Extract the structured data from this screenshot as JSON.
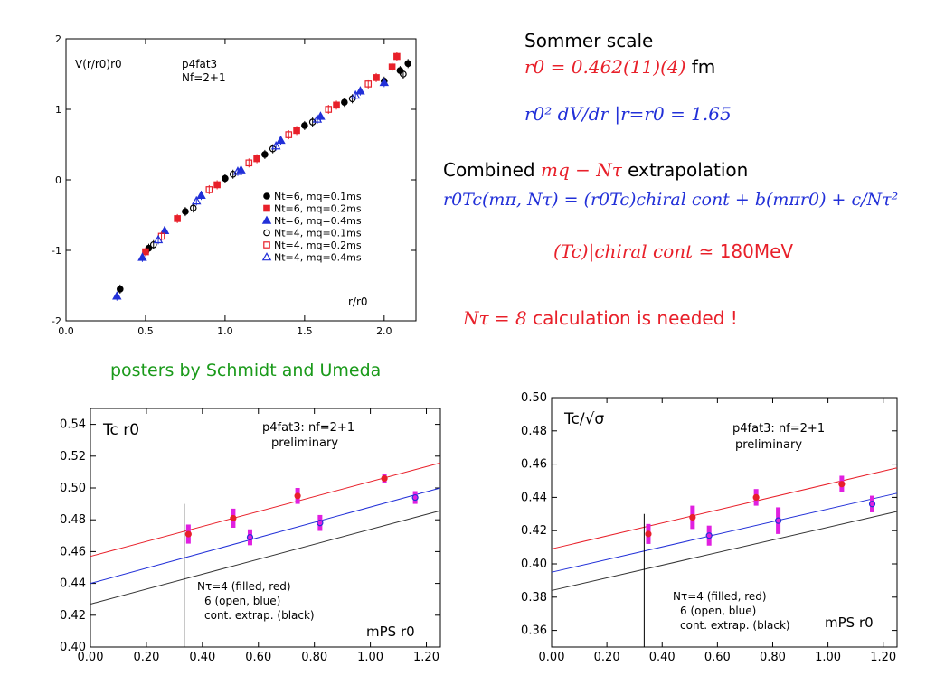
{
  "colors": {
    "red": "#e8202a",
    "blue": "#2230d8",
    "green": "#1a9a1a",
    "magenta": "#e020e0",
    "black": "#000000"
  },
  "text": {
    "sommer_title": "Sommer scale",
    "r0_value": "r0 = 0.462(11)(4)",
    "r0_unit": "fm",
    "slope": "r0² dV/dr |r=r0 = 1.65",
    "extrap_title_pre": "Combined",
    "extrap_title_math": "mq − Nτ",
    "extrap_title_post": "extrapolation",
    "extrap_formula": "r0Tc(mπ, Nτ) = (r0Tc)chiral cont + b(mπr0) + c/Nτ²",
    "tc_result_math": "(Tc)|chiral cont ≃",
    "tc_result_val": "180MeV",
    "nt8_math": "Nτ = 8",
    "nt8_text": "calculation is needed !",
    "posters": "posters by Schmidt and Umeda"
  },
  "chart_data": [
    {
      "type": "scatter",
      "title": "p4fat3",
      "subtitle": "Nf=2+1",
      "ylabel": "V(r/r0)r0",
      "xlabel": "r/r0",
      "xlim": [
        0,
        2.2
      ],
      "ylim": [
        -2,
        2
      ],
      "xticks": [
        "0.0",
        "0.5",
        "1.0",
        "1.5",
        "2.0"
      ],
      "yticks": [
        "-2",
        "-1",
        "0",
        "1",
        "2"
      ],
      "legend_position": "center-right",
      "series": [
        {
          "name": "Nt=6, mq=0.1ms",
          "marker": "circle",
          "fill": true,
          "color": "#000000",
          "x": [
            0.34,
            0.52,
            0.75,
            1.0,
            1.25,
            1.5,
            1.75,
            2.0,
            2.1,
            2.15
          ],
          "y": [
            -1.55,
            -0.97,
            -0.45,
            0.02,
            0.36,
            0.77,
            1.1,
            1.4,
            1.55,
            1.65
          ]
        },
        {
          "name": "Nt=6, mq=0.2ms",
          "marker": "square",
          "fill": true,
          "color": "#e8202a",
          "x": [
            0.5,
            0.7,
            0.95,
            1.2,
            1.45,
            1.7,
            1.95,
            2.05,
            2.08
          ],
          "y": [
            -1.02,
            -0.55,
            -0.07,
            0.3,
            0.7,
            1.06,
            1.45,
            1.6,
            1.75
          ]
        },
        {
          "name": "Nt=6, mq=0.4ms",
          "marker": "triangle",
          "fill": true,
          "color": "#2230d8",
          "x": [
            0.32,
            0.48,
            0.62,
            0.85,
            1.1,
            1.35,
            1.6,
            1.85,
            2.0
          ],
          "y": [
            -1.65,
            -1.1,
            -0.72,
            -0.22,
            0.14,
            0.56,
            0.9,
            1.26,
            1.38
          ]
        },
        {
          "name": "Nt=4, mq=0.1ms",
          "marker": "circle",
          "fill": false,
          "color": "#000000",
          "x": [
            0.55,
            0.8,
            1.05,
            1.3,
            1.55,
            1.8,
            2.12
          ],
          "y": [
            -0.92,
            -0.4,
            0.08,
            0.44,
            0.82,
            1.15,
            1.5
          ]
        },
        {
          "name": "Nt=4, mq=0.2ms",
          "marker": "square",
          "fill": false,
          "color": "#e8202a",
          "x": [
            0.6,
            0.9,
            1.15,
            1.4,
            1.65,
            1.9
          ],
          "y": [
            -0.8,
            -0.14,
            0.24,
            0.64,
            1.0,
            1.36
          ]
        },
        {
          "name": "Nt=4, mq=0.4ms",
          "marker": "triangle",
          "fill": false,
          "color": "#2230d8",
          "x": [
            0.58,
            0.82,
            1.08,
            1.32,
            1.58,
            1.82
          ],
          "y": [
            -0.85,
            -0.3,
            0.12,
            0.48,
            0.86,
            1.2
          ]
        }
      ]
    },
    {
      "type": "scatter",
      "title": "p4fat3: nf=2+1",
      "subtitle": "preliminary",
      "ylabel": "Tc r0",
      "xlabel": "mPS r0",
      "xlim": [
        0,
        1.25
      ],
      "ylim": [
        0.4,
        0.55
      ],
      "xticks": [
        "0.00",
        "0.20",
        "0.40",
        "0.60",
        "0.80",
        "1.00",
        "1.20"
      ],
      "yticks": [
        "0.40",
        "0.42",
        "0.44",
        "0.46",
        "0.48",
        "0.50",
        "0.52",
        "0.54"
      ],
      "vline_x": 0.335,
      "annotation": [
        "Nτ=4 (filled, red)",
        "6 (open, blue)",
        "cont. extrap. (black)"
      ],
      "lines": [
        {
          "color": "#e8202a",
          "intercept": 0.457,
          "slope": 0.047
        },
        {
          "color": "#2230d8",
          "intercept": 0.44,
          "slope": 0.048
        },
        {
          "color": "#333333",
          "intercept": 0.427,
          "slope": 0.047
        }
      ],
      "series": [
        {
          "name": "Nτ=4",
          "color": "#e8202a",
          "fill": true,
          "x": [
            0.35,
            0.51,
            0.74,
            1.05
          ],
          "y": [
            0.471,
            0.481,
            0.495,
            0.506
          ],
          "err": [
            0.006,
            0.006,
            0.005,
            0.003
          ]
        },
        {
          "name": "Nτ=6",
          "color": "#2230d8",
          "fill": false,
          "x": [
            0.57,
            0.82,
            1.16
          ],
          "y": [
            0.469,
            0.478,
            0.494
          ],
          "err": [
            0.005,
            0.005,
            0.004
          ]
        }
      ]
    },
    {
      "type": "scatter",
      "title": "p4fat3: nf=2+1",
      "subtitle": "preliminary",
      "ylabel": "Tc/√σ",
      "xlabel": "mPS r0",
      "xlim": [
        0,
        1.25
      ],
      "ylim": [
        0.35,
        0.5
      ],
      "xticks": [
        "0.00",
        "0.20",
        "0.40",
        "0.60",
        "0.80",
        "1.00",
        "1.20"
      ],
      "yticks": [
        "0.36",
        "0.38",
        "0.40",
        "0.42",
        "0.44",
        "0.46",
        "0.48",
        "0.50"
      ],
      "vline_x": 0.335,
      "annotation": [
        "Nτ=4 (filled, red)",
        "6 (open, blue)",
        "cont. extrap. (black)"
      ],
      "lines": [
        {
          "color": "#e8202a",
          "intercept": 0.409,
          "slope": 0.039
        },
        {
          "color": "#2230d8",
          "intercept": 0.395,
          "slope": 0.038
        },
        {
          "color": "#333333",
          "intercept": 0.384,
          "slope": 0.038
        }
      ],
      "series": [
        {
          "name": "Nτ=4",
          "color": "#e8202a",
          "fill": true,
          "x": [
            0.35,
            0.51,
            0.74,
            1.05
          ],
          "y": [
            0.418,
            0.428,
            0.44,
            0.448
          ],
          "err": [
            0.006,
            0.007,
            0.005,
            0.005
          ]
        },
        {
          "name": "Nτ=6",
          "color": "#2230d8",
          "fill": false,
          "x": [
            0.57,
            0.82,
            1.16
          ],
          "y": [
            0.417,
            0.426,
            0.436
          ],
          "err": [
            0.006,
            0.008,
            0.005
          ]
        }
      ]
    }
  ]
}
